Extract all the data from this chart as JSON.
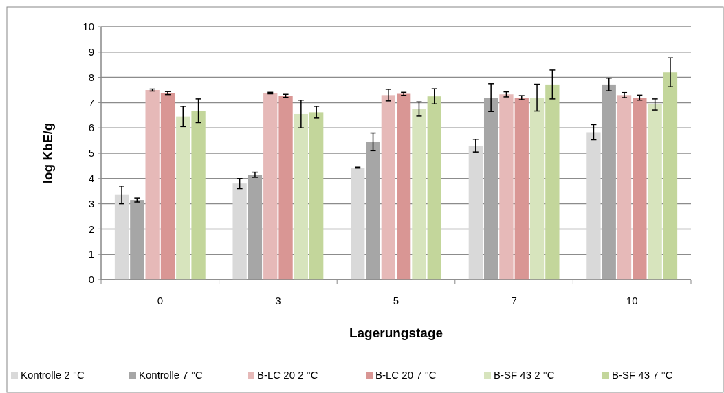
{
  "chart_data": {
    "type": "bar",
    "xlabel": "Lagerungstage",
    "ylabel": "log KbE/g",
    "categories": [
      "0",
      "3",
      "5",
      "7",
      "10"
    ],
    "series": [
      {
        "name": "Kontrolle 2 °C",
        "color": "#d9d9d9",
        "values": [
          3.35,
          3.8,
          4.43,
          5.3,
          5.83
        ],
        "errors": [
          0.35,
          0.2,
          0.02,
          0.25,
          0.3
        ]
      },
      {
        "name": "Kontrolle 7 °C",
        "color": "#a6a6a6",
        "values": [
          3.15,
          4.15,
          5.45,
          7.2,
          7.72
        ],
        "errors": [
          0.08,
          0.1,
          0.35,
          0.55,
          0.25
        ]
      },
      {
        "name": "B-LC 20 2 °C",
        "color": "#e6b9b8",
        "values": [
          7.5,
          7.38,
          7.3,
          7.33,
          7.3
        ],
        "errors": [
          0.04,
          0.03,
          0.23,
          0.1,
          0.1
        ]
      },
      {
        "name": "B-LC 20 7 °C",
        "color": "#d99694",
        "values": [
          7.38,
          7.27,
          7.35,
          7.2,
          7.2
        ],
        "errors": [
          0.06,
          0.06,
          0.06,
          0.08,
          0.1
        ]
      },
      {
        "name": "B-SF 43 2 °C",
        "color": "#d7e4bd",
        "values": [
          6.45,
          6.55,
          6.75,
          7.2,
          6.93
        ],
        "errors": [
          0.4,
          0.55,
          0.28,
          0.53,
          0.22
        ]
      },
      {
        "name": "B-SF 43 7 °C",
        "color": "#c3d69b",
        "values": [
          6.68,
          6.62,
          7.25,
          7.72,
          8.2
        ],
        "errors": [
          0.47,
          0.23,
          0.3,
          0.57,
          0.57
        ]
      }
    ],
    "ylim": [
      0,
      10
    ],
    "yticks": [
      0,
      1,
      2,
      3,
      4,
      5,
      6,
      7,
      8,
      9,
      10
    ],
    "grid": "y",
    "legend": "bottom"
  }
}
